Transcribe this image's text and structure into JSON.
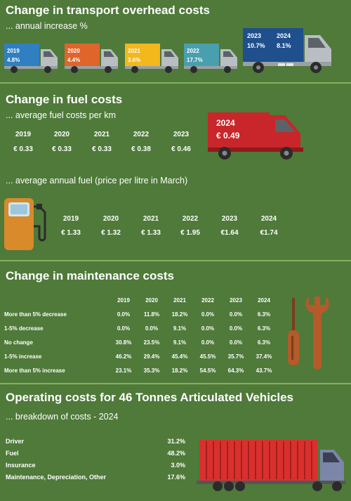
{
  "transport": {
    "title": "Change in transport overhead costs",
    "subtitle": "... annual increase %",
    "trucks": [
      {
        "year": "2019",
        "value": "4.8%",
        "color": "#2f7fc1"
      },
      {
        "year": "2020",
        "value": "4.4%",
        "color": "#e0652a"
      },
      {
        "year": "2021",
        "value": "3.6%",
        "color": "#f2b81c"
      },
      {
        "year": "2022",
        "value": "17.7%",
        "color": "#4a9fae"
      }
    ],
    "big_truck": {
      "year1": "2023",
      "value1": "10.7%",
      "year2": "2024",
      "value2": "8.1%",
      "color": "#1f4f8c"
    }
  },
  "fuel": {
    "title": "Change in fuel costs",
    "subtitle_km": "... average fuel costs per km",
    "per_km": {
      "years": [
        "2019",
        "2020",
        "2021",
        "2022",
        "2023"
      ],
      "values": [
        "€ 0.33",
        "€ 0.33",
        "€ 0.33",
        "€ 0.38",
        "€ 0.46"
      ]
    },
    "van": {
      "year": "2024",
      "value": "€ 0.49",
      "color": "#c8262a"
    },
    "subtitle_annual": "... average annual fuel (price per litre in March)",
    "annual": {
      "years": [
        "2019",
        "2020",
        "2021",
        "2022",
        "2023",
        "2024"
      ],
      "values": [
        "€ 1.33",
        "€ 1.32",
        "€ 1.33",
        "€ 1.95",
        "€1.64",
        "€1.74"
      ]
    }
  },
  "maintenance": {
    "title": "Change in maintenance costs",
    "years": [
      "2019",
      "2020",
      "2021",
      "2022",
      "2023",
      "2024"
    ],
    "rows": [
      {
        "label": "More than 5% decrease",
        "values": [
          "0.0%",
          "11.8%",
          "18.2%",
          "0.0%",
          "0.0%",
          "6.3%"
        ]
      },
      {
        "label": "1-5% decrease",
        "values": [
          "0.0%",
          "0.0%",
          "9.1%",
          "0.0%",
          "0.0%",
          "6.3%"
        ]
      },
      {
        "label": "No change",
        "values": [
          "30.8%",
          "23.5%",
          "9.1%",
          "0.0%",
          "0.0%",
          "6.3%"
        ]
      },
      {
        "label": "1-5% increase",
        "values": [
          "46.2%",
          "29.4%",
          "45.4%",
          "45.5%",
          "35.7%",
          "37.4%"
        ]
      },
      {
        "label": "More than 5% increase",
        "values": [
          "23.1%",
          "35.3%",
          "18.2%",
          "54.5%",
          "64.3%",
          "43.7%"
        ]
      }
    ]
  },
  "operating": {
    "title": "Operating costs for 46 Tonnes Articulated Vehicles",
    "subtitle": "... breakdown of costs - 2024",
    "items": [
      {
        "label": "Driver",
        "value": "31.2%"
      },
      {
        "label": "Fuel",
        "value": "48.2%"
      },
      {
        "label": "Insurance",
        "value": "3.0%"
      },
      {
        "label": "Maintenance, Depreciation, Other",
        "value": "17.6%"
      }
    ]
  }
}
